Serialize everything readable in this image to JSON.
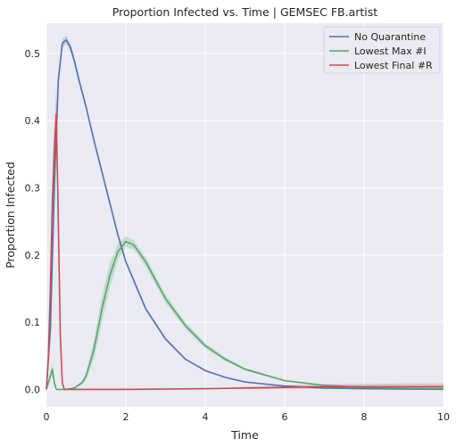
{
  "chart_data": {
    "type": "line",
    "title": "Proportion Infected vs. Time | GEMSEC FB.artist",
    "xlabel": "Time",
    "ylabel": "Proportion Infected",
    "xlim": [
      0,
      10
    ],
    "ylim": [
      -0.026,
      0.545
    ],
    "x_ticks": [
      0,
      2,
      4,
      6,
      8,
      10
    ],
    "x_tick_labels": [
      "0",
      "2",
      "4",
      "6",
      "8",
      "10"
    ],
    "y_ticks": [
      0.0,
      0.1,
      0.2,
      0.3,
      0.4,
      0.5
    ],
    "y_tick_labels": [
      "0.0",
      "0.1",
      "0.2",
      "0.3",
      "0.4",
      "0.5"
    ],
    "grid": true,
    "legend_position": "top-right",
    "series": [
      {
        "name": "No Quarantine",
        "color": "#4c72b0",
        "x": [
          0,
          0.1,
          0.2,
          0.3,
          0.4,
          0.5,
          0.6,
          0.7,
          0.8,
          1.0,
          1.2,
          1.5,
          1.8,
          2.0,
          2.5,
          3.0,
          3.5,
          4.0,
          4.5,
          5.0,
          6.0,
          7.0,
          8.0,
          9.0,
          10.0
        ],
        "y": [
          0.0,
          0.09,
          0.3,
          0.46,
          0.515,
          0.52,
          0.51,
          0.49,
          0.465,
          0.42,
          0.37,
          0.3,
          0.23,
          0.19,
          0.12,
          0.075,
          0.045,
          0.028,
          0.018,
          0.011,
          0.005,
          0.002,
          0.001,
          0.0005,
          0.0002
        ],
        "band": [
          0.0,
          0.006,
          0.008,
          0.008,
          0.007,
          0.006,
          0.006,
          0.006,
          0.005,
          0.004,
          0.004,
          0.003,
          0.003,
          0.003,
          0.002,
          0.002,
          0.001,
          0.001,
          0.001,
          0.001,
          0.0,
          0.0,
          0.0,
          0.0,
          0.0
        ]
      },
      {
        "name": "Lowest Max #I",
        "color": "#55a868",
        "x": [
          0,
          0.1,
          0.15,
          0.2,
          0.25,
          0.3,
          0.5,
          0.7,
          0.9,
          1.0,
          1.2,
          1.4,
          1.6,
          1.8,
          2.0,
          2.2,
          2.5,
          3.0,
          3.5,
          4.0,
          4.5,
          5.0,
          6.0,
          7.0,
          8.0,
          9.0,
          10.0
        ],
        "y": [
          0.0,
          0.02,
          0.03,
          0.01,
          0.0,
          0.0,
          0.0,
          0.002,
          0.01,
          0.02,
          0.06,
          0.12,
          0.17,
          0.205,
          0.22,
          0.215,
          0.19,
          0.135,
          0.095,
          0.065,
          0.045,
          0.03,
          0.013,
          0.006,
          0.003,
          0.0015,
          0.001
        ],
        "band": [
          0.0,
          0.005,
          0.01,
          0.005,
          0.0,
          0.0,
          0.0,
          0.001,
          0.003,
          0.006,
          0.014,
          0.02,
          0.018,
          0.012,
          0.008,
          0.007,
          0.007,
          0.006,
          0.005,
          0.004,
          0.003,
          0.002,
          0.001,
          0.001,
          0.001,
          0.0,
          0.0
        ]
      },
      {
        "name": "Lowest Final #R",
        "color": "#c44e52",
        "x": [
          0,
          0.05,
          0.1,
          0.15,
          0.2,
          0.25,
          0.3,
          0.35,
          0.4,
          0.45,
          1.0,
          2.0,
          3.0,
          4.0,
          5.0,
          6.0,
          7.0,
          8.0,
          9.0,
          10.0
        ],
        "y": [
          0.0,
          0.05,
          0.15,
          0.28,
          0.36,
          0.41,
          0.25,
          0.08,
          0.01,
          0.0,
          0.0,
          0.0,
          0.0005,
          0.001,
          0.002,
          0.003,
          0.004,
          0.004,
          0.004,
          0.004
        ],
        "band": [
          0.0,
          0.01,
          0.02,
          0.03,
          0.04,
          0.04,
          0.03,
          0.01,
          0.002,
          0.0,
          0.0,
          0.0,
          0.0005,
          0.001,
          0.002,
          0.003,
          0.004,
          0.004,
          0.005,
          0.005
        ]
      }
    ]
  }
}
